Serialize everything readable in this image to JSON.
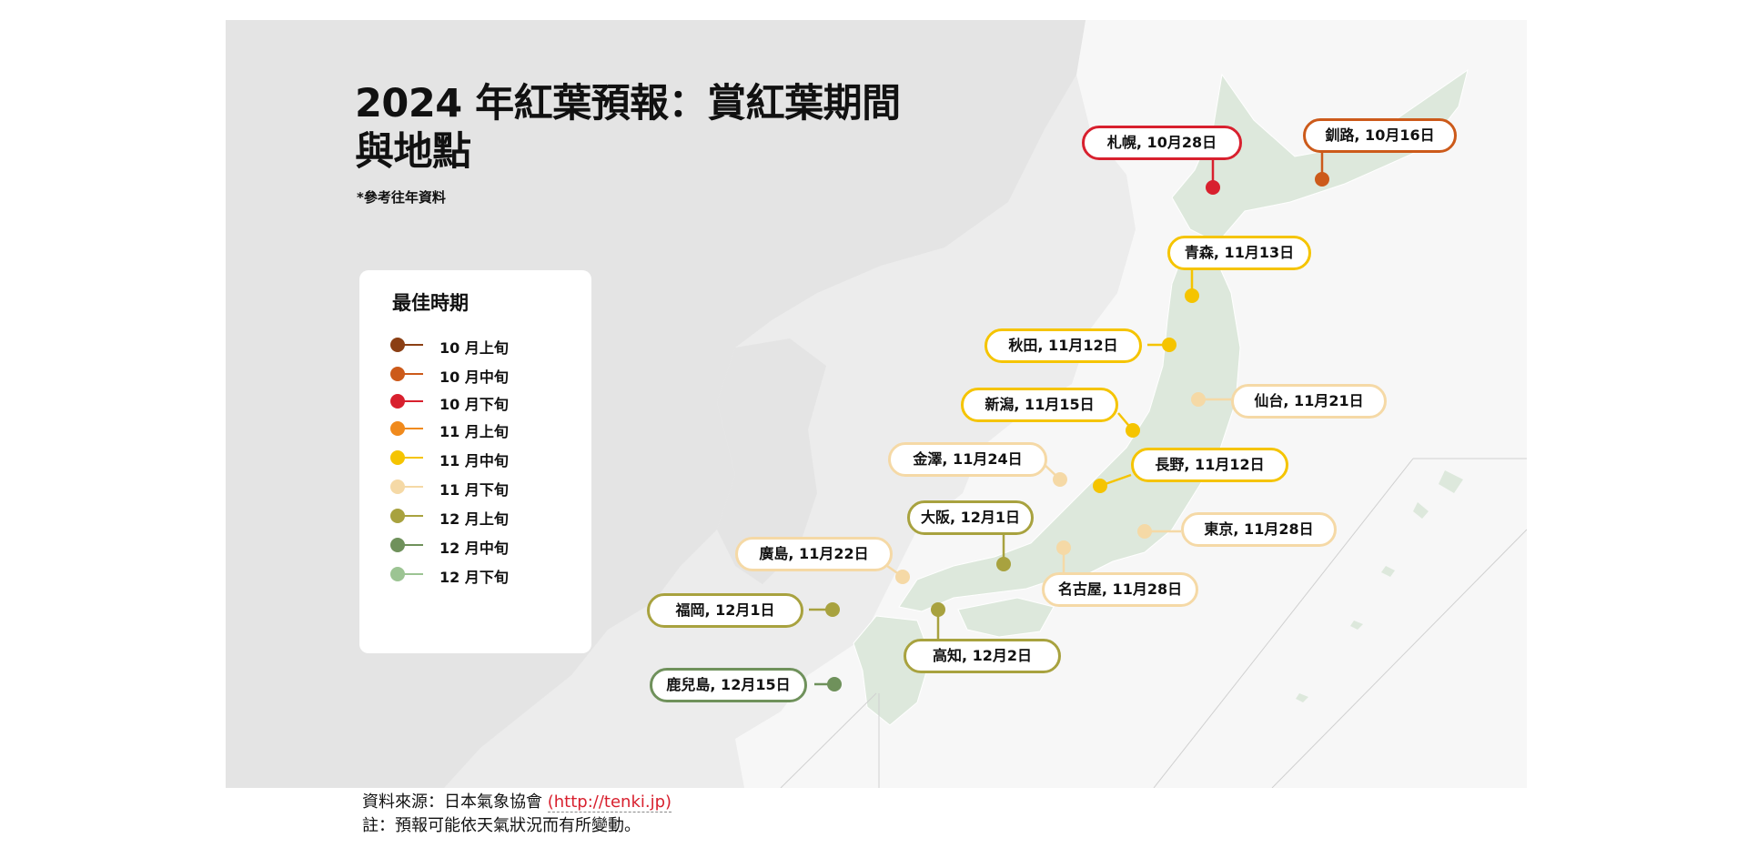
{
  "title": "2024 年紅葉預報：賞紅葉期間與地點",
  "subtitle": "*參考往年資料",
  "legend": {
    "title": "最佳時期",
    "items": [
      {
        "label": "10 月上旬",
        "color": "#8b3f14"
      },
      {
        "label": "10 月中旬",
        "color": "#cc5a1a"
      },
      {
        "label": "10 月下旬",
        "color": "#d8202e"
      },
      {
        "label": "11 月上旬",
        "color": "#f08a1d"
      },
      {
        "label": "11 月中旬",
        "color": "#f5c400"
      },
      {
        "label": "11 月下旬",
        "color": "#f5d9a6"
      },
      {
        "label": "12 月上旬",
        "color": "#a8a23f"
      },
      {
        "label": "12 月中旬",
        "color": "#6f915b"
      },
      {
        "label": "12 月下旬",
        "color": "#9cc493"
      }
    ]
  },
  "cities": [
    {
      "label": "札幌, 10月28日",
      "color": "#d8202e"
    },
    {
      "label": "釧路, 10月16日",
      "color": "#cc5a1a"
    },
    {
      "label": "青森, 11月13日",
      "color": "#f5c400"
    },
    {
      "label": "秋田, 11月12日",
      "color": "#f5c400"
    },
    {
      "label": "仙台, 11月21日",
      "color": "#f5d9a6"
    },
    {
      "label": "新潟, 11月15日",
      "color": "#f5c400"
    },
    {
      "label": "金澤, 11月24日",
      "color": "#f5d9a6"
    },
    {
      "label": "長野, 11月12日",
      "color": "#f5c400"
    },
    {
      "label": "大阪, 12月1日",
      "color": "#a8a23f"
    },
    {
      "label": "東京, 11月28日",
      "color": "#f5d9a6"
    },
    {
      "label": "廣島, 11月22日",
      "color": "#f5d9a6"
    },
    {
      "label": "名古屋, 11月28日",
      "color": "#f5d9a6"
    },
    {
      "label": "福岡, 12月1日",
      "color": "#a8a23f"
    },
    {
      "label": "高知, 12月2日",
      "color": "#a8a23f"
    },
    {
      "label": "鹿兒島, 12月15日",
      "color": "#6f915b"
    }
  ],
  "footer": {
    "source_prefix": "資料來源：日本氣象協會 ",
    "source_link": "(http://tenki.jp)",
    "note": "註：預報可能依天氣狀況而有所變動。"
  }
}
